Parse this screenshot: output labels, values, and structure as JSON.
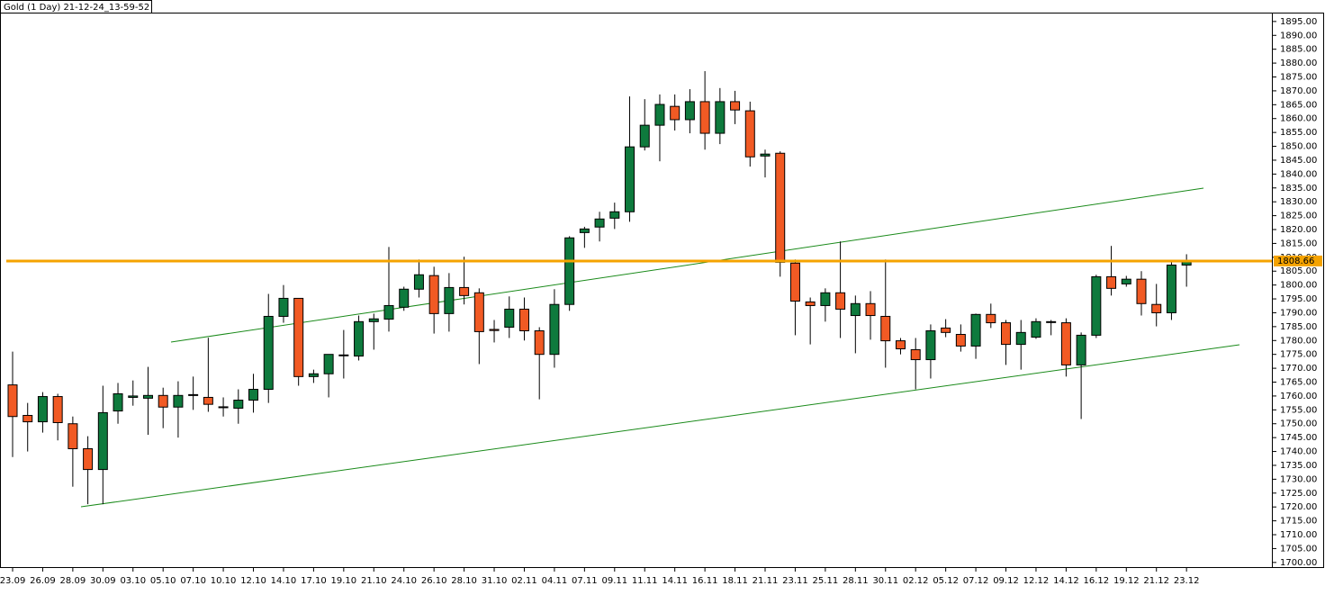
{
  "chart_data": {
    "type": "candlestick",
    "title": "Gold (1 Day) 21-12-24_13-59-52",
    "categories": [
      "23.09",
      null,
      "26.09",
      null,
      "28.09",
      null,
      "30.09",
      null,
      "03.10",
      null,
      "05.10",
      null,
      "07.10",
      null,
      "10.10",
      null,
      "12.10",
      null,
      "14.10",
      null,
      "17.10",
      null,
      "19.10",
      null,
      "21.10",
      null,
      "24.10",
      null,
      "26.10",
      null,
      "28.10",
      null,
      "31.10",
      null,
      "02.11",
      null,
      "04.11",
      null,
      "07.11",
      null,
      "09.11",
      null,
      "11.11",
      null,
      "14.11",
      null,
      "16.11",
      null,
      "18.11",
      null,
      "21.11",
      null,
      "23.11",
      null,
      "25.11",
      null,
      "28.11",
      null,
      "30.11",
      null,
      "02.12",
      null,
      "05.12",
      null,
      "07.12",
      null,
      "09.12",
      null,
      "12.12",
      null,
      "14.12",
      null,
      "16.12",
      null,
      "19.12",
      null,
      "21.12",
      null,
      "23.12"
    ],
    "open": [
      1764,
      1753,
      1750.7,
      1759.8,
      1750,
      1741,
      1733.5,
      1754.6,
      1759.5,
      1759.2,
      1760.2,
      1756,
      1760.2,
      1759.5,
      1756,
      1755.6,
      1758.5,
      1762.4,
      1788.7,
      1795.2,
      1767,
      1768,
      1774.7,
      1774.4,
      1786.8,
      1787.7,
      1792,
      1798.5,
      1803.4,
      1789.7,
      1799.1,
      1797.2,
      1784,
      1784.8,
      1791.3,
      1783.5,
      1775,
      1793,
      1818.9,
      1820.9,
      1824.1,
      1826.4,
      1849.8,
      1857.6,
      1864.4,
      1859.6,
      1866.1,
      1854.7,
      1866.1,
      1862.8,
      1846.5,
      1847.5,
      1807.9,
      1793.9,
      1792.6,
      1797.2,
      1789,
      1793.3,
      1788.7,
      1779.9,
      1776.7,
      1773.1,
      1784.5,
      1782.2,
      1778,
      1789.4,
      1786.4,
      1778.6,
      1781.2,
      1786.6,
      1786.4,
      1771.2,
      1781.9,
      1803,
      1800.4,
      1802.1,
      1793,
      1790,
      1807.2
    ],
    "high": [
      1776,
      1757.5,
      1761.4,
      1760.8,
      1752.6,
      1745.5,
      1763.7,
      1764.7,
      1765.6,
      1770.5,
      1763,
      1765.3,
      1767,
      1781,
      1759.5,
      1762.4,
      1768,
      1796.8,
      1800,
      1795.2,
      1769.5,
      1775,
      1783.8,
      1789,
      1789.7,
      1813.7,
      1799.4,
      1809.2,
      1806.6,
      1804.3,
      1810.2,
      1798.8,
      1787.4,
      1795.9,
      1795.5,
      1784.8,
      1798.5,
      1817.6,
      1821,
      1826.4,
      1829.7,
      1868,
      1867,
      1868.7,
      1868.7,
      1870.6,
      1877.1,
      1871,
      1870,
      1866.1,
      1848.8,
      1848.2,
      1809.2,
      1795.5,
      1798.8,
      1815.7,
      1796.2,
      1797.8,
      1809.2,
      1780.9,
      1780.9,
      1785.8,
      1787.7,
      1785.8,
      1789.7,
      1793.3,
      1787.4,
      1787.4,
      1788,
      1787.4,
      1788,
      1782.9,
      1803.7,
      1814.1,
      1803.3,
      1805,
      1800.4,
      1808.5,
      1811.1
    ],
    "low": [
      1738,
      1740,
      1746.8,
      1744,
      1727.3,
      1721,
      1721,
      1750,
      1756.5,
      1746,
      1748.4,
      1745,
      1755,
      1754.3,
      1752.6,
      1750,
      1754,
      1757.5,
      1786.4,
      1763.7,
      1764.7,
      1759.5,
      1766.3,
      1772.8,
      1776.7,
      1783.2,
      1790.7,
      1795.5,
      1782.5,
      1783.2,
      1793,
      1771.5,
      1779.3,
      1780.9,
      1780,
      1758.8,
      1770.2,
      1790.7,
      1813.4,
      1815.7,
      1820.2,
      1822.8,
      1848.5,
      1844.6,
      1855.7,
      1854.7,
      1848.8,
      1850.8,
      1858,
      1842.7,
      1838.8,
      1803,
      1781.9,
      1778.6,
      1786.8,
      1780.9,
      1775.4,
      1780.3,
      1770.2,
      1775,
      1762.4,
      1766.3,
      1781.2,
      1776,
      1773.4,
      1784.5,
      1771.2,
      1769.5,
      1780.6,
      1781.9,
      1767,
      1751.7,
      1780.9,
      1796.2,
      1799.4,
      1789,
      1785.1,
      1787.4,
      1799.4
    ],
    "close": [
      1752.6,
      1750.7,
      1759.8,
      1750.4,
      1741,
      1733.5,
      1754,
      1760.8,
      1760,
      1760.2,
      1756,
      1760.2,
      1760.5,
      1757,
      1756.1,
      1758.5,
      1762.4,
      1788.7,
      1795.2,
      1767,
      1768,
      1775,
      1774.8,
      1786.8,
      1787.8,
      1792.6,
      1798.5,
      1803.7,
      1789.7,
      1799.1,
      1796.2,
      1783.2,
      1783.6,
      1791.3,
      1783.5,
      1775,
      1793,
      1817,
      1820.2,
      1823.8,
      1826.4,
      1849.8,
      1857.6,
      1865.1,
      1859.6,
      1866.1,
      1854.7,
      1866.1,
      1863.1,
      1846.2,
      1847.2,
      1808.2,
      1794.2,
      1792.6,
      1797.2,
      1791.3,
      1793.3,
      1789,
      1779.9,
      1777,
      1773.1,
      1783.5,
      1782.9,
      1778,
      1789.4,
      1786.4,
      1778.6,
      1782.9,
      1786.8,
      1786.8,
      1771.2,
      1781.9,
      1803,
      1798.8,
      1802.1,
      1793.3,
      1790,
      1807.2,
      1808.66
    ],
    "up_color": "#0e7a3d",
    "down_color": "#f15a24",
    "last_price": 1808.66,
    "last_price_color": "#f5a300",
    "ylim": [
      1698,
      1898.2
    ],
    "yticks": [
      {
        "value": 1700,
        "label": "1700.00"
      },
      {
        "value": 1705,
        "label": "1705.00"
      },
      {
        "value": 1710,
        "label": "1710.00"
      },
      {
        "value": 1715,
        "label": "1715.00"
      },
      {
        "value": 1720,
        "label": "1720.00"
      },
      {
        "value": 1725,
        "label": "1725.00"
      },
      {
        "value": 1730,
        "label": "1730.00"
      },
      {
        "value": 1735,
        "label": "1735.00"
      },
      {
        "value": 1740,
        "label": "1740.00"
      },
      {
        "value": 1745,
        "label": "1745.00"
      },
      {
        "value": 1750,
        "label": "1750.00"
      },
      {
        "value": 1755,
        "label": "1755.00"
      },
      {
        "value": 1760,
        "label": "1760.00"
      },
      {
        "value": 1765,
        "label": "1765.00"
      },
      {
        "value": 1770,
        "label": "1770.00"
      },
      {
        "value": 1775,
        "label": "1775.00"
      },
      {
        "value": 1780,
        "label": "1780.00"
      },
      {
        "value": 1785,
        "label": "1785.00"
      },
      {
        "value": 1790,
        "label": "1790.00"
      },
      {
        "value": 1795,
        "label": "1795.00"
      },
      {
        "value": 1800,
        "label": "1800.00"
      },
      {
        "value": 1805,
        "label": "1805.00"
      },
      {
        "value": 1810,
        "label": "1810.00"
      },
      {
        "value": 1815,
        "label": "1815.00"
      },
      {
        "value": 1820,
        "label": "1820.00"
      },
      {
        "value": 1825,
        "label": "1825.00"
      },
      {
        "value": 1830,
        "label": "1830.00"
      },
      {
        "value": 1835,
        "label": "1835.00"
      },
      {
        "value": 1840,
        "label": "1840.00"
      },
      {
        "value": 1845,
        "label": "1845.00"
      },
      {
        "value": 1850,
        "label": "1850.00"
      },
      {
        "value": 1855,
        "label": "1855.00"
      },
      {
        "value": 1860,
        "label": "1860.00"
      },
      {
        "value": 1865,
        "label": "1865.00"
      },
      {
        "value": 1870,
        "label": "1870.00"
      },
      {
        "value": 1875,
        "label": "1875.00"
      },
      {
        "value": 1880,
        "label": "1880.00"
      },
      {
        "value": 1885,
        "label": "1885.00"
      },
      {
        "value": 1890,
        "label": "1890.00"
      },
      {
        "value": 1895,
        "label": "1895.00"
      }
    ]
  }
}
